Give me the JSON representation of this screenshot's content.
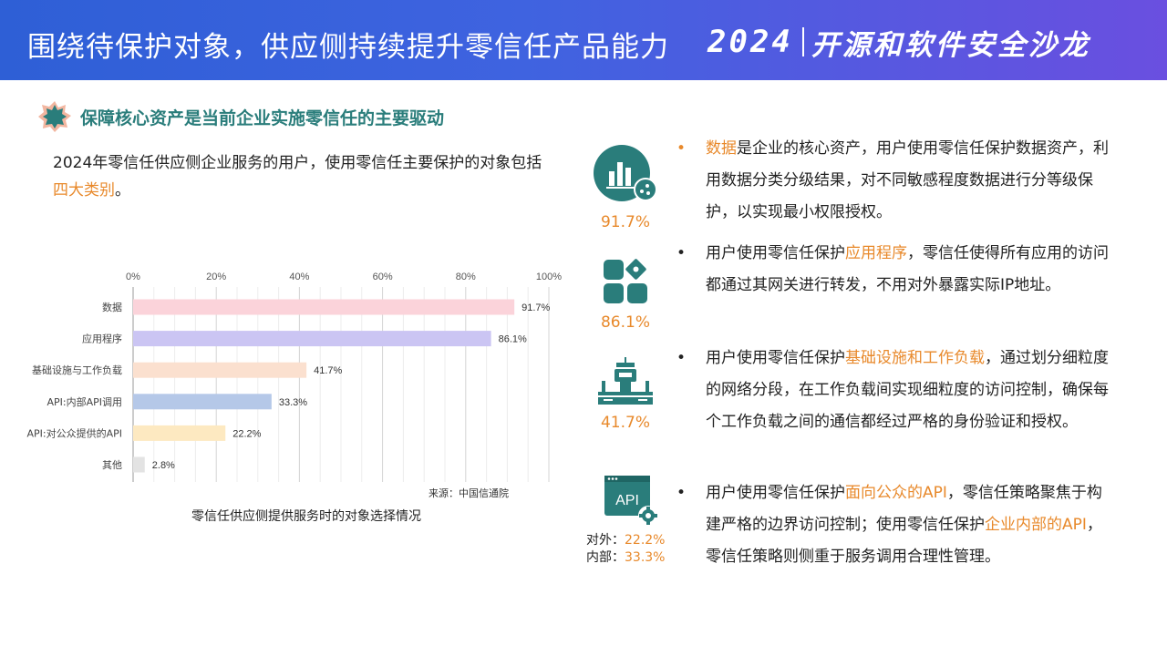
{
  "header": {
    "title": "围绕待保护对象，供应侧持续提升零信任产品能力",
    "brand_year": "2024",
    "brand_name": "开源和软件安全沙龙"
  },
  "section": {
    "title": "保障核心资产是当前企业实施零信任的主要驱动"
  },
  "intro": {
    "text": "2024年零信任供应侧企业服务的用户，使用零信任主要保护的对象包括",
    "highlight": "四大类别",
    "end": "。"
  },
  "chart_data": {
    "type": "bar",
    "orientation": "horizontal",
    "categories": [
      "数据",
      "应用程序",
      "基础设施与工作负载",
      "API:内部API调用",
      "API:对公众提供的API",
      "其他"
    ],
    "values": [
      91.7,
      86.1,
      41.7,
      33.3,
      22.2,
      2.8
    ],
    "value_labels": [
      "91.7%",
      "86.1%",
      "41.7%",
      "33.3%",
      "22.2%",
      "2.8%"
    ],
    "xlim": [
      0,
      100
    ],
    "xticks": [
      "0%",
      "20%",
      "40%",
      "60%",
      "80%",
      "100%"
    ],
    "colors": [
      "#fbd3da",
      "#cbc5f3",
      "#fbe0cf",
      "#b5c8e8",
      "#fde9c1",
      "#e3e3e3"
    ],
    "source": "来源：中国信通院",
    "caption": "零信任供应侧提供服务时的对象选择情况",
    "grid": true
  },
  "icons": [
    {
      "name": "data-chart-icon",
      "pct": "91.7%"
    },
    {
      "name": "app-blocks-icon",
      "pct": "86.1%"
    },
    {
      "name": "infrastructure-icon",
      "pct": "41.7%"
    },
    {
      "name": "api-gear-icon",
      "api_label": "API",
      "external_label": "对外：",
      "external_pct": "22.2%",
      "internal_label": "内部：",
      "internal_pct": "33.3%"
    }
  ],
  "bullets": [
    {
      "marker": "•",
      "pre": "",
      "hl": "数据",
      "post": "是企业的核心资产，用户使用零信任保护数据资产，利用数据分类分级结果，对不同敏感程度数据进行分等级保护，以实现最小权限授权。"
    },
    {
      "marker": "•",
      "pre": "用户使用零信任保护",
      "hl": "应用程序",
      "post": "，零信任使得所有应用的访问都通过其网关进行转发，不用对外暴露实际IP地址。"
    },
    {
      "marker": "•",
      "pre": "用户使用零信任保护",
      "hl": "基础设施和工作负载",
      "post": "，通过划分细粒度的网络分段，在工作负载间实现细粒度的访问控制，确保每个工作负载之间的通信都经过严格的身份验证和授权。"
    },
    {
      "marker": "•",
      "pre": "用户使用零信任保护",
      "hl": "面向公众的API",
      "mid": "，零信任策略聚焦于构建严格的边界访问控制；使用零信任保护",
      "hl2": "企业内部的API",
      "post": "，零信任策略则侧重于服务调用合理性管理。"
    }
  ],
  "colors": {
    "teal": "#2a7d7b",
    "orange": "#e8892b"
  }
}
